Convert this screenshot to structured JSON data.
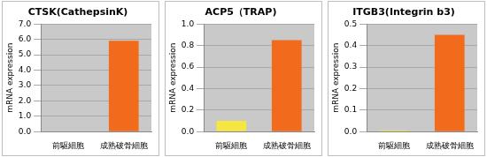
{
  "chart_data": [
    {
      "type": "bar",
      "title": "CTSK(CathepsinK)",
      "ylabel": "mRNA expression",
      "categories": [
        "前駆細胞",
        "成熟破骨細胞"
      ],
      "values": [
        0.02,
        5.9
      ],
      "colors": [
        "#f5e642",
        "#f26b1d"
      ],
      "ylim": [
        0,
        7
      ],
      "yticks": [
        {
          "value": 0,
          "label": "0.0"
        },
        {
          "value": 1,
          "label": "1.0"
        },
        {
          "value": 2,
          "label": "2.0"
        },
        {
          "value": 3,
          "label": "3.0"
        },
        {
          "value": 4,
          "label": "4.0"
        },
        {
          "value": 5,
          "label": "5.0"
        },
        {
          "value": 6,
          "label": "6.0"
        },
        {
          "value": 7,
          "label": "7.0"
        }
      ],
      "grid": true
    },
    {
      "type": "bar",
      "title": "ACP5（TRAP)",
      "ylabel": "mRNA expression",
      "categories": [
        "前駆細胞",
        "成熟破骨細胞"
      ],
      "values": [
        0.1,
        0.85
      ],
      "colors": [
        "#f5e642",
        "#f26b1d"
      ],
      "ylim": [
        0,
        1
      ],
      "yticks": [
        {
          "value": 0,
          "label": "0.0"
        },
        0.2,
        0.4,
        0.6,
        0.8,
        {
          "value": 1,
          "label": "1.0"
        }
      ],
      "grid": true
    },
    {
      "type": "bar",
      "title": "ITGB3(Integrin b3)",
      "ylabel": "mRNA expression",
      "categories": [
        "前駆細胞",
        "成熟破骨細胞"
      ],
      "values": [
        0.005,
        0.45
      ],
      "colors": [
        "#f5e642",
        "#f26b1d"
      ],
      "ylim": [
        0,
        0.5
      ],
      "yticks": [
        {
          "value": 0,
          "label": "0.0"
        },
        0.1,
        0.2,
        0.3,
        0.4,
        0.5
      ],
      "grid": true
    }
  ]
}
